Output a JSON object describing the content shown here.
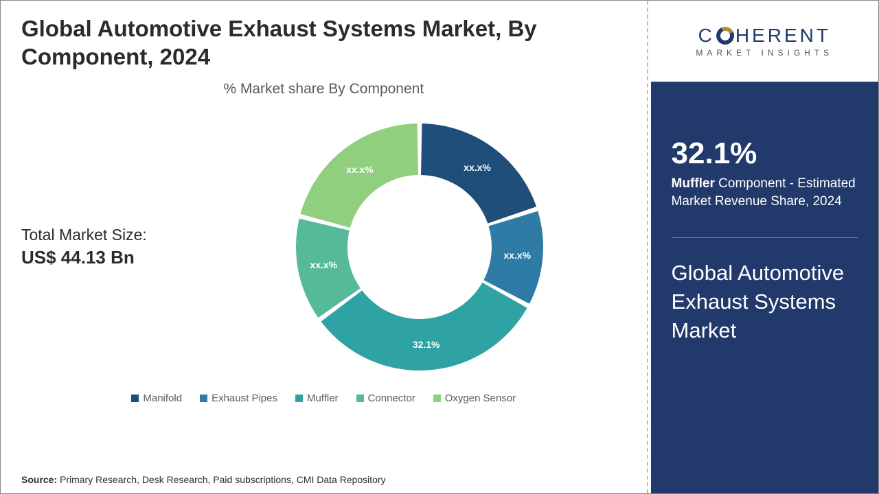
{
  "title": "Global Automotive Exhaust Systems Market, By Component, 2024",
  "subtitle": "% Market share By Component",
  "total_market_size": {
    "label": "Total Market Size:",
    "value": "US$ 44.13 Bn"
  },
  "chart": {
    "type": "donut",
    "outer_radius": 180,
    "inner_radius": 105,
    "start_angle_deg": 90,
    "gap_deg": 2.2,
    "background_color": "#ffffff",
    "label_color": "#ffffff",
    "label_fontsize": 14,
    "series": [
      {
        "name": "Manifold",
        "value": 20.0,
        "label": "xx.x%",
        "color": "#1e4e79"
      },
      {
        "name": "Exhaust Pipes",
        "value": 12.9,
        "label": "xx.x%",
        "color": "#2e7ba6"
      },
      {
        "name": "Muffler",
        "value": 32.1,
        "label": "32.1%",
        "color": "#2fa3a3"
      },
      {
        "name": "Connector",
        "value": 14.0,
        "label": "xx.x%",
        "color": "#56b99a"
      },
      {
        "name": "Oxygen Sensor",
        "value": 21.0,
        "label": "xx.x%",
        "color": "#8fcf7e"
      }
    ]
  },
  "legend": {
    "items": [
      {
        "label": "Manifold",
        "color": "#1e4e79"
      },
      {
        "label": "Exhaust Pipes",
        "color": "#2e7ba6"
      },
      {
        "label": "Muffler",
        "color": "#2fa3a3"
      },
      {
        "label": "Connector",
        "color": "#56b99a"
      },
      {
        "label": "Oxygen Sensor",
        "color": "#8fcf7e"
      }
    ]
  },
  "source": {
    "prefix": "Source: ",
    "text": "Primary Research, Desk Research, Paid subscriptions, CMI Data Repository"
  },
  "logo": {
    "top_pre": "C",
    "top_post": "HERENT",
    "sub": "MARKET INSIGHTS"
  },
  "side": {
    "stat_value": "32.1%",
    "stat_bold": "Muffler",
    "stat_rest": " Component - Estimated Market Revenue Share, 2024",
    "title": "Global Automotive Exhaust Systems Market",
    "bg_color": "#213a6b",
    "text_color": "#ffffff"
  }
}
